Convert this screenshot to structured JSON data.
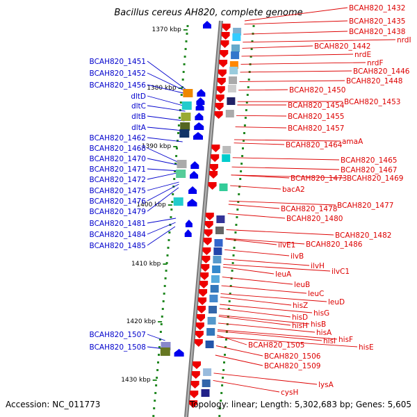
{
  "title": "Bacillus cereus AH820, complete genome",
  "footer": {
    "accession": "Accession: NC_011773",
    "topology": "Topology: linear; Length: 5,302,683 bp; Genes: 5,605"
  },
  "scale_labels": [
    "1370 kbp",
    "1380 kbp",
    "1390 kbp",
    "1400 kbp",
    "1410 kbp",
    "1420 kbp",
    "1430 kbp"
  ],
  "left_genes": [
    "BCAH820_1451",
    "BCAH820_1452",
    "BCAH820_1456",
    "dltD",
    "dltC",
    "dltB",
    "dltA",
    "BCAH820_1462",
    "BCAH820_1468",
    "BCAH820_1470",
    "BCAH820_1471",
    "BCAH820_1472",
    "BCAH820_1475",
    "BCAH820_1476",
    "BCAH820_1479",
    "BCAH820_1481",
    "BCAH820_1484",
    "BCAH820_1485",
    "BCAH820_1507",
    "BCAH820_1508"
  ],
  "right_genes": [
    "BCAH820_1432",
    "BCAH820_1435",
    "BCAH820_1438",
    "nrdI",
    "BCAH820_1442",
    "nrdE",
    "nrdF",
    "BCAH820_1446",
    "BCAH820_1448",
    "BCAH820_1450",
    "BCAH820_1453",
    "BCAH820_1454",
    "BCAH820_1455",
    "BCAH820_1457",
    "amaA",
    "BCAH820_1464",
    "BCAH820_1465",
    "BCAH820_1467",
    "BCAH820_1469",
    "BCAH820_1473",
    "bacA2",
    "BCAH820_1477",
    "BCAH820_1478",
    "BCAH820_1480",
    "BCAH820_1482",
    "BCAH820_1486",
    "ilvE1",
    "ilvB",
    "ilvH",
    "ilvC1",
    "leuA",
    "leuB",
    "leuC",
    "leuD",
    "hisZ",
    "hisG",
    "hisD",
    "hisB",
    "hisH",
    "hisA",
    "hisF",
    "hisI",
    "hisE",
    "BCAH820_1505",
    "BCAH820_1506",
    "BCAH820_1509",
    "lysA",
    "cysH"
  ],
  "colors": {
    "backbone": "#999999",
    "left_label": "#0000cc",
    "right_label": "#dd0000",
    "forward_gene": "#ee0000",
    "reverse_gene": "#0000ee",
    "tick": "#228822"
  }
}
